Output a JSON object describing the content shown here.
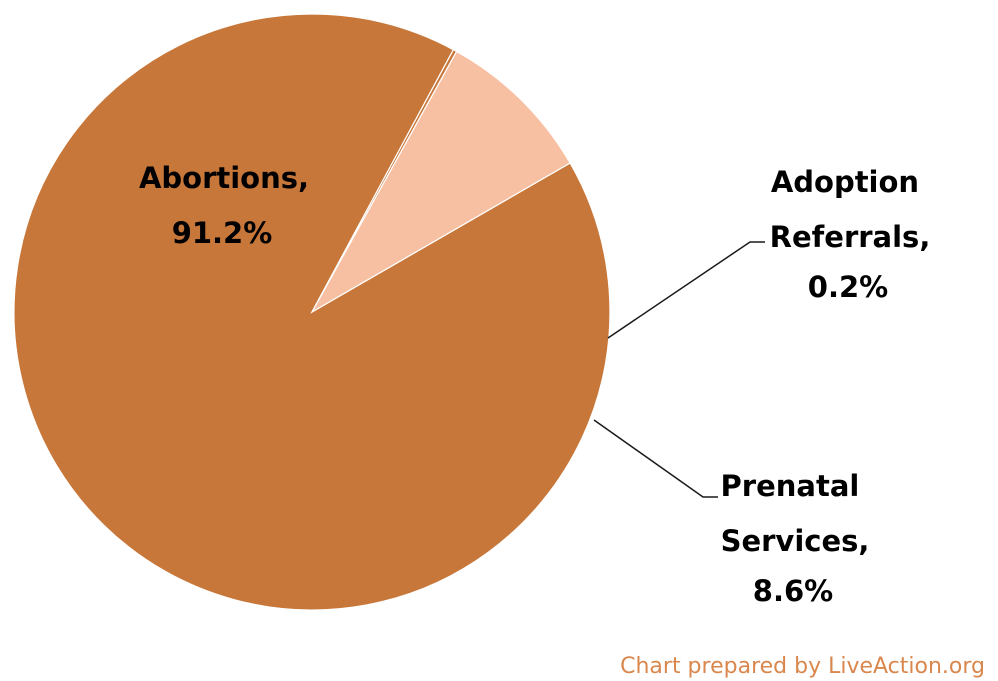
{
  "chart_data": {
    "type": "pie",
    "slices": [
      {
        "category": "Abortions",
        "value": 91.2,
        "value_label": "91.2%",
        "color": "#c8773a"
      },
      {
        "category": "Adoption Referrals",
        "value": 0.2,
        "value_label": "0.2%",
        "color": "#c8773a"
      },
      {
        "category": "Prenatal Services",
        "value": 8.6,
        "value_label": "8.6%",
        "color": "#f7c0a2"
      }
    ],
    "start_angle_deg": -30,
    "direction": "clockwise",
    "legend": "none",
    "data_labels": true
  },
  "credit": {
    "text": "Chart prepared by LiveAction.org",
    "color": "#d9874d"
  }
}
